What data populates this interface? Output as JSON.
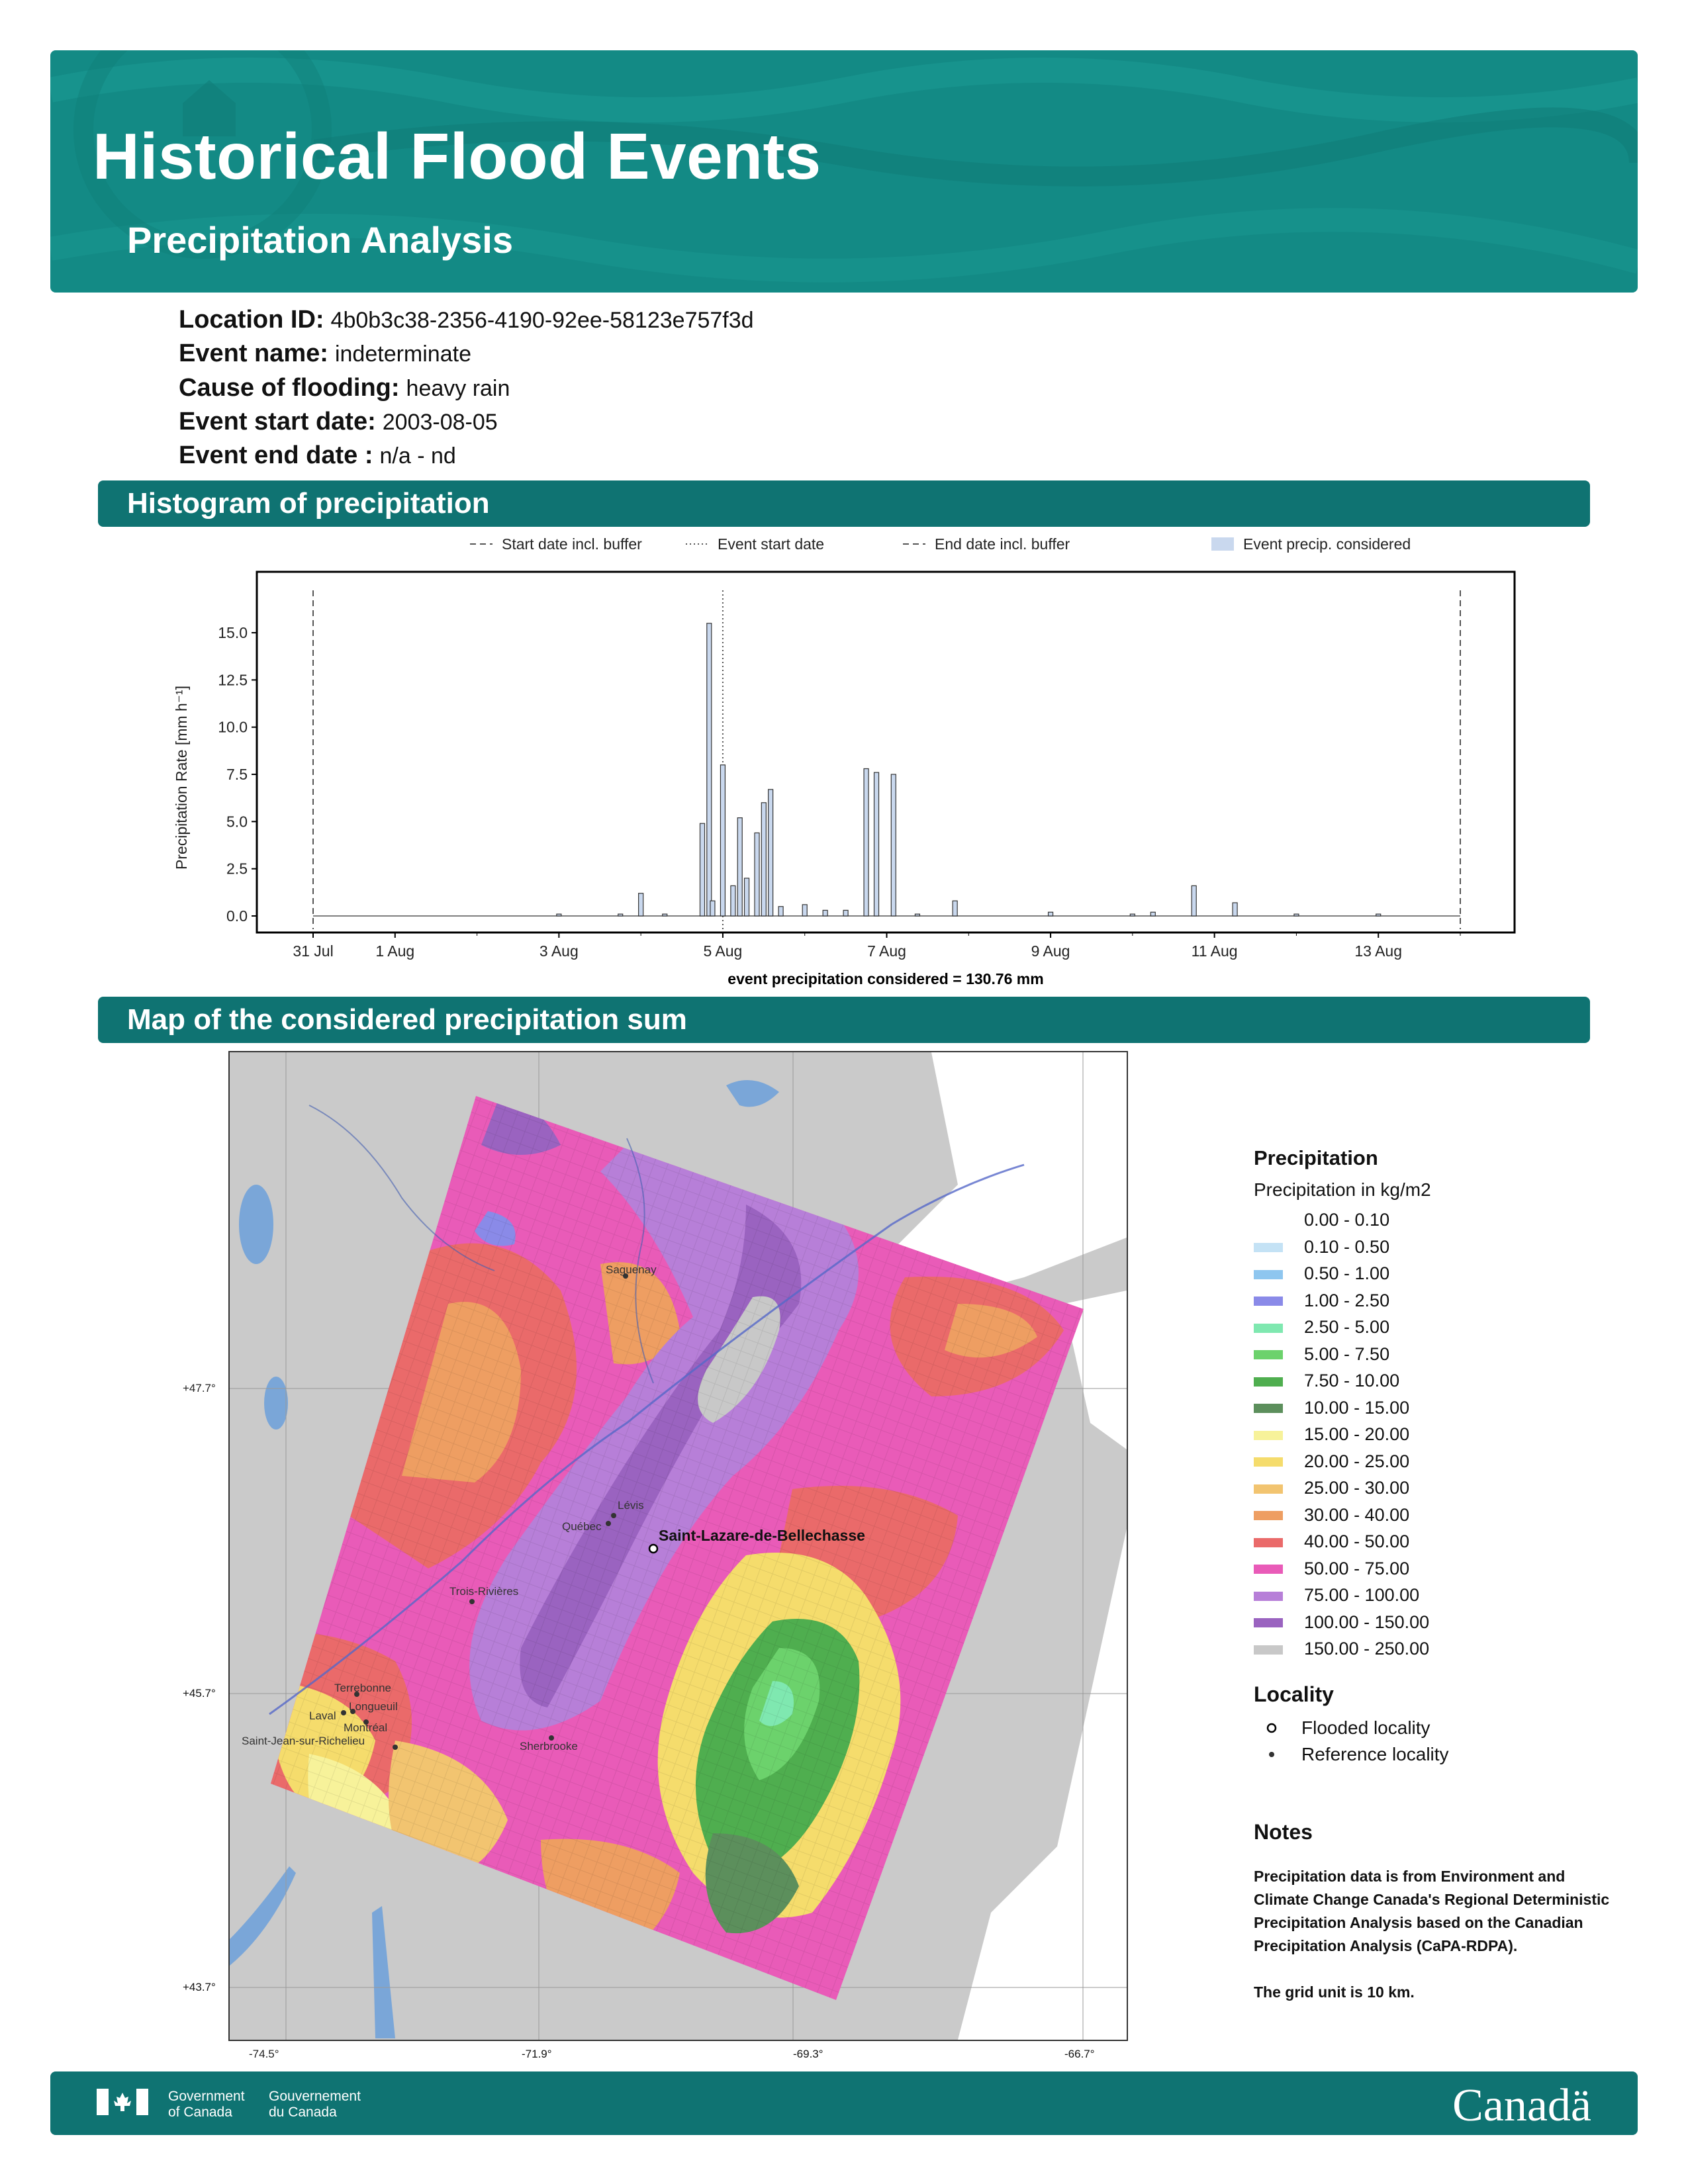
{
  "header": {
    "title": "Historical Flood Events",
    "subtitle": "Precipitation Analysis"
  },
  "info": {
    "location_id": {
      "label": "Location ID:",
      "value": "4b0b3c38-2356-4190-92ee-58123e757f3d"
    },
    "event_name": {
      "label": "Event name:",
      "value": "indeterminate"
    },
    "cause": {
      "label": "Cause of flooding:",
      "value": "heavy rain"
    },
    "start_date": {
      "label": "Event start date:",
      "value": "2003-08-05"
    },
    "end_date": {
      "label": "Event end date :",
      "value": "n/a - nd"
    }
  },
  "sections": {
    "histogram": "Histogram of precipitation",
    "map": "Map of the considered precipitation sum"
  },
  "chart_data": {
    "type": "bar",
    "ylabel": "Precipitation Rate [mm h⁻¹]",
    "xlabel": "event precipitation considered = 130.76 mm",
    "ylim": [
      0,
      17
    ],
    "yticks": [
      "0.0",
      "2.5",
      "5.0",
      "7.5",
      "10.0",
      "12.5",
      "15.0"
    ],
    "xticks": [
      "31 Jul",
      "1 Aug",
      "3 Aug",
      "5 Aug",
      "7 Aug",
      "9 Aug",
      "11 Aug",
      "13 Aug"
    ],
    "xrange_days": [
      "2003-07-31",
      "2003-08-14"
    ],
    "legend": [
      "Start date incl. buffer",
      "Event start date",
      "End date incl. buffer",
      "Event precip. considered"
    ],
    "markers": {
      "start_buffer": "2003-07-31",
      "event_start": "2003-08-05",
      "end_buffer": "2003-08-14"
    },
    "total_precip_mm": 130.76,
    "series": [
      {
        "x": [
          "2003-08-03",
          "2003-08-03 18:00",
          "2003-08-04 00:00",
          "2003-08-04 07:00",
          "2003-08-04 18:00",
          "2003-08-04 20:00",
          "2003-08-04 21:00",
          "2003-08-05 00:00",
          "2003-08-05 03:00",
          "2003-08-05 05:00",
          "2003-08-05 07:00",
          "2003-08-05 10:00",
          "2003-08-05 12:00",
          "2003-08-05 14:00",
          "2003-08-05 17:00",
          "2003-08-06 00:00",
          "2003-08-06 06:00",
          "2003-08-06 12:00",
          "2003-08-06 18:00",
          "2003-08-06 21:00",
          "2003-08-07 02:00",
          "2003-08-07 09:00",
          "2003-08-07 20:00",
          "2003-08-09 00:00",
          "2003-08-10 00:00",
          "2003-08-10 06:00",
          "2003-08-10 18:00",
          "2003-08-11 06:00",
          "2003-08-12 00:00",
          "2003-08-13 00:00"
        ],
        "values": [
          0.1,
          0.1,
          1.2,
          0.1,
          4.9,
          15.5,
          0.8,
          8.0,
          1.6,
          5.2,
          2.0,
          4.4,
          6.0,
          6.7,
          0.5,
          0.6,
          0.3,
          0.3,
          7.8,
          7.6,
          7.5,
          0.1,
          0.8,
          0.2,
          0.1,
          0.2,
          1.6,
          0.7,
          0.1,
          0.1
        ]
      }
    ]
  },
  "map": {
    "lat_labels": [
      "+47.7°",
      "+45.7°",
      "+43.7°"
    ],
    "lon_labels": [
      "-74.5°",
      "-71.9°",
      "-69.3°",
      "-66.7°"
    ],
    "flooded_locality": "Saint-Lazare-de-Bellechasse",
    "reference_localities": [
      "Saguenay",
      "Lévis",
      "Québec",
      "Trois-Rivières",
      "Terrebonne",
      "Longueuil",
      "Laval",
      "Montréal",
      "Saint-Jean-sur-Richelieu",
      "Sherbrooke"
    ]
  },
  "legend": {
    "title": "Precipitation",
    "subtitle": "Precipitation in kg/m2",
    "items": [
      {
        "label": "0.00 - 0.10",
        "color": "#ffffff"
      },
      {
        "label": "0.10 - 0.50",
        "color": "#c4e2f5"
      },
      {
        "label": "0.50 - 1.00",
        "color": "#8ec6ef"
      },
      {
        "label": "1.00 - 2.50",
        "color": "#8a8ae8"
      },
      {
        "label": "2.50 - 5.00",
        "color": "#7fe8b0"
      },
      {
        "label": "5.00 - 7.50",
        "color": "#6cd26c"
      },
      {
        "label": "7.50 - 10.00",
        "color": "#4fae4f"
      },
      {
        "label": "10.00 - 15.00",
        "color": "#5c8f5c"
      },
      {
        "label": "15.00 - 20.00",
        "color": "#f7f29a"
      },
      {
        "label": "20.00 - 25.00",
        "color": "#f5dc6c"
      },
      {
        "label": "25.00 - 30.00",
        "color": "#f2c470"
      },
      {
        "label": "30.00 - 40.00",
        "color": "#ee9e62"
      },
      {
        "label": "40.00 - 50.00",
        "color": "#ea6a6a"
      },
      {
        "label": "50.00 - 75.00",
        "color": "#e95bb8"
      },
      {
        "label": "75.00 - 100.00",
        "color": "#b77fd8"
      },
      {
        "label": "100.00 - 150.00",
        "color": "#9a63c0"
      },
      {
        "label": "150.00 - 250.00",
        "color": "#c8c8c8"
      }
    ],
    "locality_title": "Locality",
    "flooded_label": "Flooded locality",
    "reference_label": "Reference locality",
    "notes_title": "Notes",
    "notes_p1": "Precipitation data is from Environment and Climate Change Canada's Regional Deterministic Precipitation Analysis based on the Canadian Precipitation Analysis (CaPA-RDPA).",
    "notes_p2": "The grid unit is 10 km."
  },
  "footer": {
    "gov_en": "Government\nof Canada",
    "gov_fr": "Gouvernement\ndu Canada",
    "wordmark": "Canadä"
  },
  "colors": {
    "teal": "#138a85",
    "dark_teal": "#0f7372"
  }
}
